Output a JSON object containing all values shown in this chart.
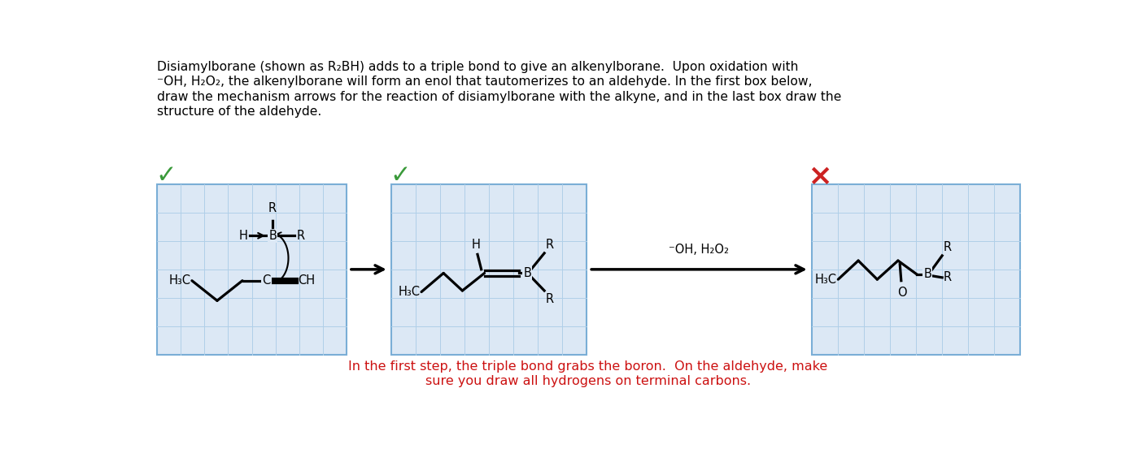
{
  "bg_color": "#ffffff",
  "box_bg": "#dce8f5",
  "box_border": "#7aaed6",
  "grid_color": "#b0cfe8",
  "check_color": "#3a9a3a",
  "cross_color": "#cc2222",
  "feedback_color": "#cc1111",
  "title_lines": [
    "Disiamylborane (shown as R₂BH) adds to a triple bond to give an alkenylborane.  Upon oxidation with",
    "⁻OH, H₂O₂, the alkenylborane will form an enol that tautomerizes to an aldehyde. In the first box below,",
    "draw the mechanism arrows for the reaction of disiamylborane with the alkyne, and in the last box draw the",
    "structure of the aldehyde."
  ],
  "feedback_lines": [
    "In the first step, the triple bond grabs the boron.  On the aldehyde, make",
    "sure you draw all hydrogens on terminal carbons."
  ]
}
